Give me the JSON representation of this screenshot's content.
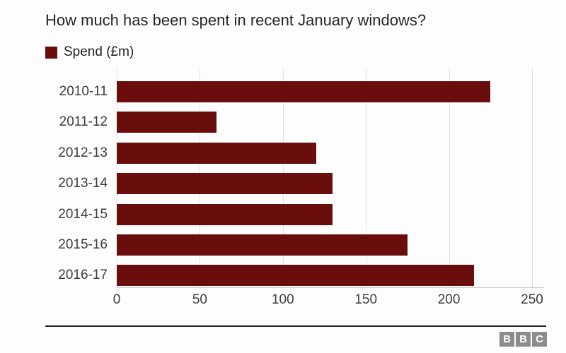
{
  "header": {
    "title": "How much has been spent in recent January windows?"
  },
  "legend": {
    "label": "Spend (£m)"
  },
  "chart_data": {
    "type": "bar",
    "orientation": "horizontal",
    "title": "How much has been spent in recent January windows?",
    "legend_entries": [
      "Spend (£m)"
    ],
    "legend_position": "top-left",
    "categories": [
      "2010-11",
      "2011-12",
      "2012-13",
      "2013-14",
      "2014-15",
      "2015-16",
      "2016-17"
    ],
    "values": [
      225,
      60,
      120,
      130,
      130,
      175,
      215
    ],
    "xlabel": "",
    "ylabel": "",
    "xlim": [
      0,
      250
    ],
    "xticks": [
      0,
      50,
      100,
      150,
      200,
      250
    ],
    "grid": true
  },
  "colors": {
    "bar": "#690d0d",
    "gridline": "#e4e0e0",
    "axis_line": "#c9c5c5",
    "title_text": "#262626",
    "label_text": "#3d3d3d",
    "separator": "#1f1f1f",
    "logo_box": "#8c8c8c"
  },
  "footer": {
    "logo_letters": [
      "B",
      "B",
      "C"
    ]
  }
}
